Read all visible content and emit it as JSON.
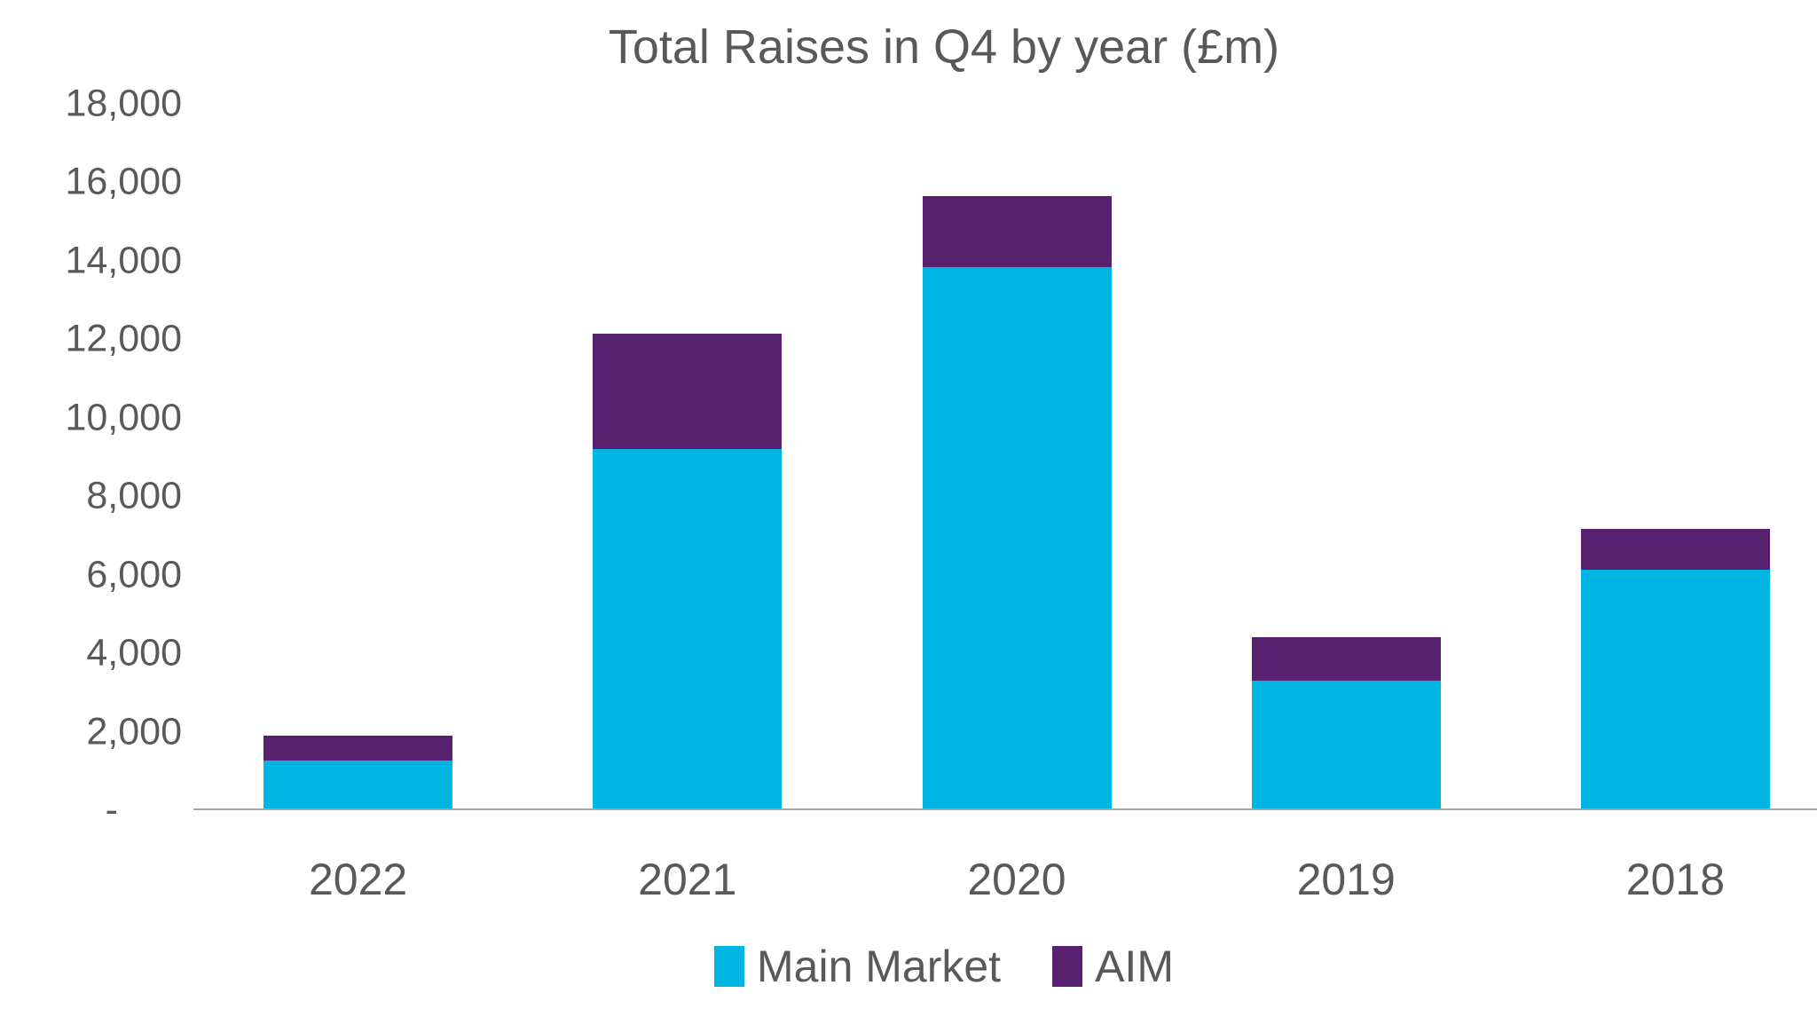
{
  "chart_data": {
    "type": "bar",
    "stacked": true,
    "title": "Total Raises in Q4 by year (£m)",
    "categories": [
      "2022",
      "2021",
      "2020",
      "2019",
      "2018"
    ],
    "series": [
      {
        "name": "Main Market",
        "color": "#00B5E2",
        "values": [
          1270,
          9200,
          13850,
          3300,
          6130
        ]
      },
      {
        "name": "AIM",
        "color": "#58216F",
        "values": [
          630,
          2950,
          1800,
          1100,
          1040
        ]
      }
    ],
    "xlabel": "",
    "ylabel": "",
    "ylim": [
      0,
      18000
    ],
    "y_tick_step": 2000,
    "y_ticks": [
      {
        "value": 18000,
        "label": "18,000"
      },
      {
        "value": 16000,
        "label": "16,000"
      },
      {
        "value": 14000,
        "label": "14,000"
      },
      {
        "value": 12000,
        "label": "12,000"
      },
      {
        "value": 10000,
        "label": "10,000"
      },
      {
        "value": 8000,
        "label": "8,000"
      },
      {
        "value": 6000,
        "label": "6,000"
      },
      {
        "value": 4000,
        "label": "4,000"
      },
      {
        "value": 2000,
        "label": "2,000"
      },
      {
        "value": 0,
        "label": "-"
      }
    ],
    "grid": false,
    "legend_position": "bottom",
    "text_color": "#595959",
    "axis_line_color": "#A6A6A6",
    "background_color": "#FFFFFF"
  }
}
